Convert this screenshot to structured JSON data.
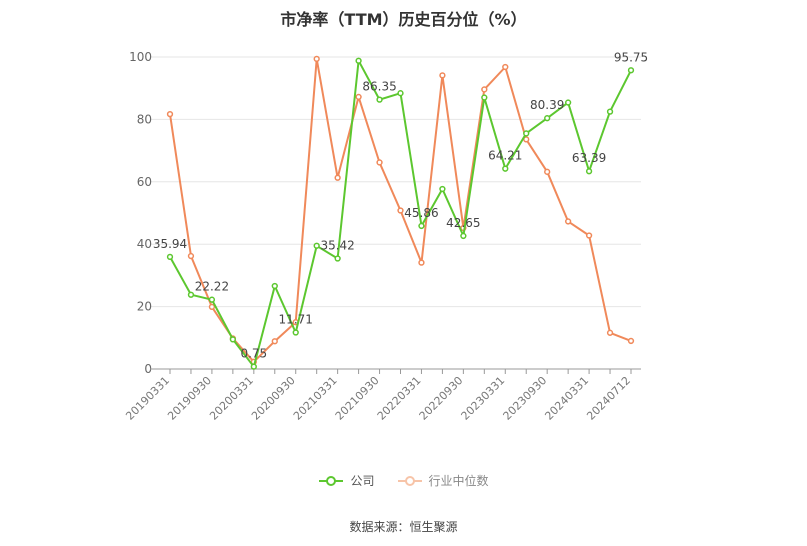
{
  "chart_data": {
    "type": "line",
    "title": "市净率（TTM）历史百分位（%）",
    "xlabel": "",
    "ylabel": "",
    "ylim": [
      0,
      100
    ],
    "yticks": [
      0,
      20,
      40,
      60,
      80,
      100
    ],
    "x_tick_labels": [
      "20190331",
      "20190930",
      "20200331",
      "20200930",
      "20210331",
      "20210930",
      "20220331",
      "20220930",
      "20230331",
      "20230930",
      "20240331",
      "20240712"
    ],
    "x": [
      "20190331",
      "20190630",
      "20190930",
      "20191231",
      "20200331",
      "20200630",
      "20200930",
      "20201231",
      "20210331",
      "20210630",
      "20210930",
      "20211231",
      "20220331",
      "20220630",
      "20220930",
      "20221231",
      "20230331",
      "20230630",
      "20230930",
      "20231231",
      "20240331",
      "20240630",
      "20240712"
    ],
    "grid": true,
    "legend_position": "bottom",
    "series": [
      {
        "name": "公司",
        "color": "#5cc72f",
        "values": [
          35.94,
          23.8,
          22.22,
          9.5,
          0.75,
          26.6,
          11.71,
          39.5,
          35.42,
          98.8,
          86.35,
          88.4,
          45.86,
          57.7,
          42.65,
          87.0,
          64.21,
          75.5,
          80.39,
          85.4,
          63.39,
          82.5,
          95.75
        ],
        "labels": {
          "0": "35.94",
          "2": "22.22",
          "4": "0.75",
          "6": "11.71",
          "8": "35.42",
          "10": "86.35",
          "12": "45.86",
          "14": "42.65",
          "16": "64.21",
          "18": "80.39",
          "20": "63.39",
          "22": "95.75"
        }
      },
      {
        "name": "行业中位数",
        "color": "#f0895a",
        "values": [
          81.7,
          36.2,
          19.9,
          9.8,
          2.3,
          8.9,
          15.0,
          99.4,
          61.3,
          87.2,
          66.2,
          50.8,
          34.1,
          94.1,
          45.2,
          89.6,
          96.8,
          73.6,
          63.2,
          47.3,
          42.8,
          11.6,
          9.0
        ]
      }
    ]
  },
  "source": "数据来源：恒生聚源"
}
